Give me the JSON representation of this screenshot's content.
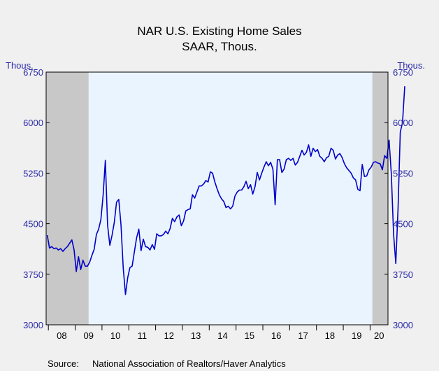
{
  "chart_data": {
    "type": "line",
    "title": "NAR U.S. Existing Home Sales",
    "subtitle": "SAAR, Thous.",
    "left_unit": "Thous.",
    "right_unit": "Thous.",
    "ylim": [
      3000,
      6750
    ],
    "yticks": [
      "6750",
      "6000",
      "5250",
      "4500",
      "3750",
      "3000"
    ],
    "yticks_values": [
      6750,
      6000,
      5250,
      4500,
      3750,
      3000
    ],
    "x_tick_labels": [
      "08",
      "09",
      "10",
      "11",
      "12",
      "13",
      "14",
      "15",
      "16",
      "17",
      "18",
      "19",
      "20"
    ],
    "xlim": [
      "2007-12",
      "2020-08"
    ],
    "recessions": [
      {
        "start": "2007-12",
        "end": "2009-06"
      },
      {
        "start": "2020-02",
        "end": "2020-08"
      }
    ],
    "series": [
      {
        "color": "#0000c8",
        "values": [
          4330,
          4140,
          4160,
          4130,
          4140,
          4110,
          4130,
          4090,
          4130,
          4160,
          4210,
          4260,
          4110,
          3790,
          4010,
          3820,
          3960,
          3870,
          3870,
          3930,
          4030,
          4120,
          4340,
          4420,
          4560,
          4920,
          5440,
          4480,
          4180,
          4330,
          4520,
          4820,
          4860,
          4480,
          3840,
          3450,
          3700,
          3850,
          3870,
          4080,
          4290,
          4420,
          4100,
          4270,
          4160,
          4150,
          4110,
          4190,
          4120,
          4350,
          4320,
          4320,
          4340,
          4390,
          4350,
          4430,
          4580,
          4530,
          4600,
          4630,
          4470,
          4540,
          4690,
          4710,
          4720,
          4930,
          4880,
          4970,
          5060,
          5060,
          5090,
          5140,
          5120,
          5270,
          5250,
          5120,
          5020,
          4930,
          4870,
          4830,
          4740,
          4760,
          4720,
          4760,
          4910,
          4970,
          5000,
          5000,
          5050,
          5130,
          5020,
          5080,
          4940,
          5050,
          5260,
          5150,
          5250,
          5340,
          5420,
          5360,
          5410,
          5310,
          4780,
          5450,
          5450,
          5260,
          5310,
          5450,
          5470,
          5440,
          5470,
          5370,
          5410,
          5500,
          5590,
          5520,
          5560,
          5670,
          5500,
          5620,
          5570,
          5600,
          5500,
          5470,
          5420,
          5480,
          5500,
          5620,
          5590,
          5460,
          5520,
          5540,
          5480,
          5390,
          5330,
          5290,
          5250,
          5180,
          5150,
          5010,
          4990,
          5380,
          5200,
          5210,
          5300,
          5340,
          5410,
          5420,
          5400,
          5390,
          5300,
          5510,
          5470,
          5740,
          5240,
          4350,
          3910,
          4720,
          5860,
          6000,
          6540
        ]
      }
    ]
  },
  "source": {
    "label": "Source:",
    "text": "National Association of Realtors/Haver Analytics"
  }
}
